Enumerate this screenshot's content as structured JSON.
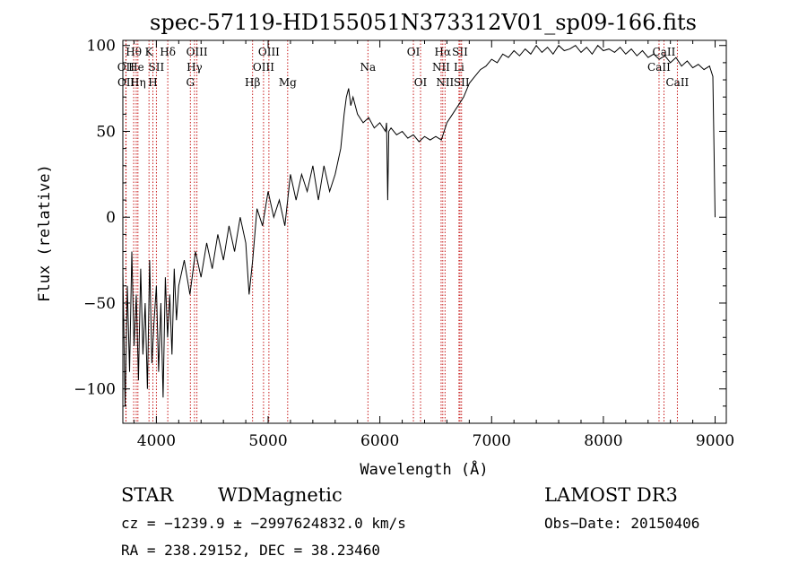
{
  "chart_data": {
    "type": "line",
    "title": "spec-57119-HD155051N373312V01_sp09-166.fits",
    "xlabel": "Wavelength (Å)",
    "ylabel": "Flux (relative)",
    "xlim": [
      3700,
      9100
    ],
    "ylim": [
      -120,
      103
    ],
    "x_ticks": [
      4000,
      5000,
      6000,
      7000,
      8000,
      9000
    ],
    "y_ticks": [
      -100,
      -50,
      0,
      50,
      100
    ],
    "series": [
      {
        "name": "flux",
        "x": [
          3700,
          3720,
          3740,
          3760,
          3780,
          3800,
          3820,
          3840,
          3860,
          3880,
          3900,
          3920,
          3940,
          3960,
          3980,
          4000,
          4020,
          4040,
          4060,
          4080,
          4100,
          4120,
          4140,
          4160,
          4180,
          4200,
          4250,
          4300,
          4350,
          4400,
          4450,
          4500,
          4550,
          4600,
          4650,
          4700,
          4750,
          4800,
          4830,
          4862,
          4900,
          4950,
          5000,
          5050,
          5100,
          5150,
          5200,
          5250,
          5300,
          5350,
          5400,
          5450,
          5500,
          5550,
          5600,
          5650,
          5680,
          5700,
          5720,
          5740,
          5760,
          5800,
          5850,
          5900,
          5950,
          6000,
          6050,
          6060,
          6070,
          6080,
          6100,
          6150,
          6200,
          6250,
          6300,
          6350,
          6400,
          6450,
          6500,
          6550,
          6600,
          6650,
          6700,
          6750,
          6800,
          6850,
          6900,
          6950,
          7000,
          7050,
          7100,
          7150,
          7200,
          7250,
          7300,
          7350,
          7400,
          7450,
          7500,
          7550,
          7600,
          7650,
          7700,
          7750,
          7800,
          7850,
          7900,
          7950,
          8000,
          8050,
          8100,
          8150,
          8200,
          8250,
          8300,
          8350,
          8400,
          8450,
          8500,
          8550,
          8600,
          8650,
          8700,
          8750,
          8800,
          8850,
          8900,
          8950,
          8980,
          8990,
          9000
        ],
        "y": [
          -30,
          -110,
          -40,
          -90,
          -20,
          -75,
          -45,
          -95,
          -30,
          -80,
          -50,
          -100,
          -25,
          -85,
          -60,
          -40,
          -90,
          -50,
          -105,
          -35,
          -70,
          -45,
          -80,
          -30,
          -60,
          -40,
          -25,
          -45,
          -20,
          -35,
          -15,
          -30,
          -10,
          -25,
          -5,
          -20,
          0,
          -15,
          -45,
          -25,
          5,
          -5,
          15,
          0,
          10,
          -5,
          25,
          10,
          25,
          15,
          30,
          10,
          30,
          15,
          25,
          40,
          60,
          70,
          75,
          65,
          70,
          60,
          55,
          58,
          52,
          55,
          50,
          55,
          10,
          50,
          52,
          48,
          50,
          46,
          48,
          44,
          47,
          45,
          47,
          45,
          55,
          60,
          65,
          70,
          78,
          82,
          86,
          88,
          92,
          90,
          95,
          93,
          97,
          94,
          98,
          95,
          100,
          96,
          99,
          95,
          100,
          97,
          98,
          100,
          96,
          99,
          95,
          100,
          97,
          98,
          96,
          99,
          95,
          98,
          94,
          97,
          93,
          95,
          92,
          94,
          90,
          93,
          88,
          91,
          87,
          89,
          86,
          88,
          82,
          40,
          0
        ]
      }
    ],
    "lines": [
      {
        "name": "Hθ",
        "x": 3797,
        "row": 1
      },
      {
        "name": "OII",
        "x": 3727,
        "row": 2
      },
      {
        "name": "OII",
        "x": 3729,
        "row": 3
      },
      {
        "name": "He",
        "x": 3820,
        "row": 2
      },
      {
        "name": "Hη",
        "x": 3835,
        "row": 3
      },
      {
        "name": "K",
        "x": 3934,
        "row": 1
      },
      {
        "name": "SII",
        "x": 4000,
        "row": 2
      },
      {
        "name": "H",
        "x": 3969,
        "row": 3
      },
      {
        "name": "Hδ",
        "x": 4102,
        "row": 1
      },
      {
        "name": "OIII",
        "x": 4363,
        "row": 1
      },
      {
        "name": "Hγ",
        "x": 4341,
        "row": 2
      },
      {
        "name": "G",
        "x": 4304,
        "row": 3
      },
      {
        "name": "OIII",
        "x": 5007,
        "row": 1
      },
      {
        "name": "OIII",
        "x": 4959,
        "row": 2
      },
      {
        "name": "Hβ",
        "x": 4861,
        "row": 3
      },
      {
        "name": "Mg",
        "x": 5175,
        "row": 3
      },
      {
        "name": "Na",
        "x": 5893,
        "row": 2
      },
      {
        "name": "OI",
        "x": 6300,
        "row": 1
      },
      {
        "name": "OI",
        "x": 6364,
        "row": 3
      },
      {
        "name": "Hα",
        "x": 6563,
        "row": 1
      },
      {
        "name": "SII",
        "x": 6717,
        "row": 1
      },
      {
        "name": "NII",
        "x": 6548,
        "row": 2
      },
      {
        "name": "Li",
        "x": 6708,
        "row": 2
      },
      {
        "name": "NII",
        "x": 6583,
        "row": 3
      },
      {
        "name": "SII",
        "x": 6731,
        "row": 3
      },
      {
        "name": "CaII",
        "x": 8542,
        "row": 1
      },
      {
        "name": "CaII",
        "x": 8498,
        "row": 2
      },
      {
        "name": "CaII",
        "x": 8662,
        "row": 3
      }
    ]
  },
  "info": {
    "object_type": "STAR",
    "subclass": "WDMagnetic",
    "survey": "LAMOST DR3",
    "cz": "cz = −1239.9 ± −2997624832.0 km/s",
    "obs_date": "Obs−Date: 20150406",
    "coords": "RA = 238.29152, DEC =  38.23460"
  }
}
